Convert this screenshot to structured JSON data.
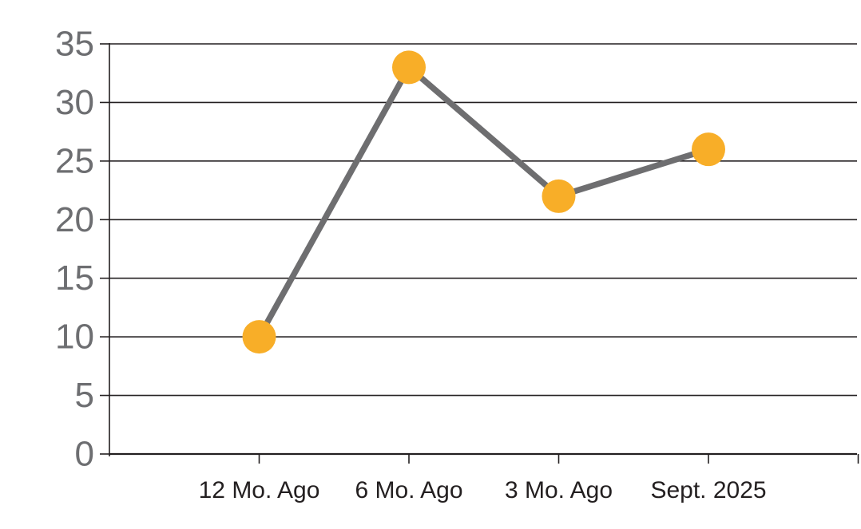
{
  "chart_data": {
    "type": "line",
    "title": "",
    "xlabel": "",
    "ylabel": "",
    "categories": [
      "12 Mo. Ago",
      "6 Mo. Ago",
      "3 Mo. Ago",
      "Sept. 2025"
    ],
    "values": [
      10,
      33,
      22,
      26
    ],
    "ylim": [
      0,
      35
    ],
    "ytick_step": 5,
    "ytick_labels": [
      "0",
      "5",
      "10",
      "15",
      "20",
      "25",
      "30",
      "35"
    ],
    "grid": "horizontal",
    "legend": "none",
    "colors": {
      "marker": "#F8AE28",
      "line": "#6E6E70",
      "grid_and_axis": "#231F20",
      "ytick_label": "#6D6E71",
      "xtick_label": "#231F20",
      "background": "#FFFFFF"
    }
  }
}
